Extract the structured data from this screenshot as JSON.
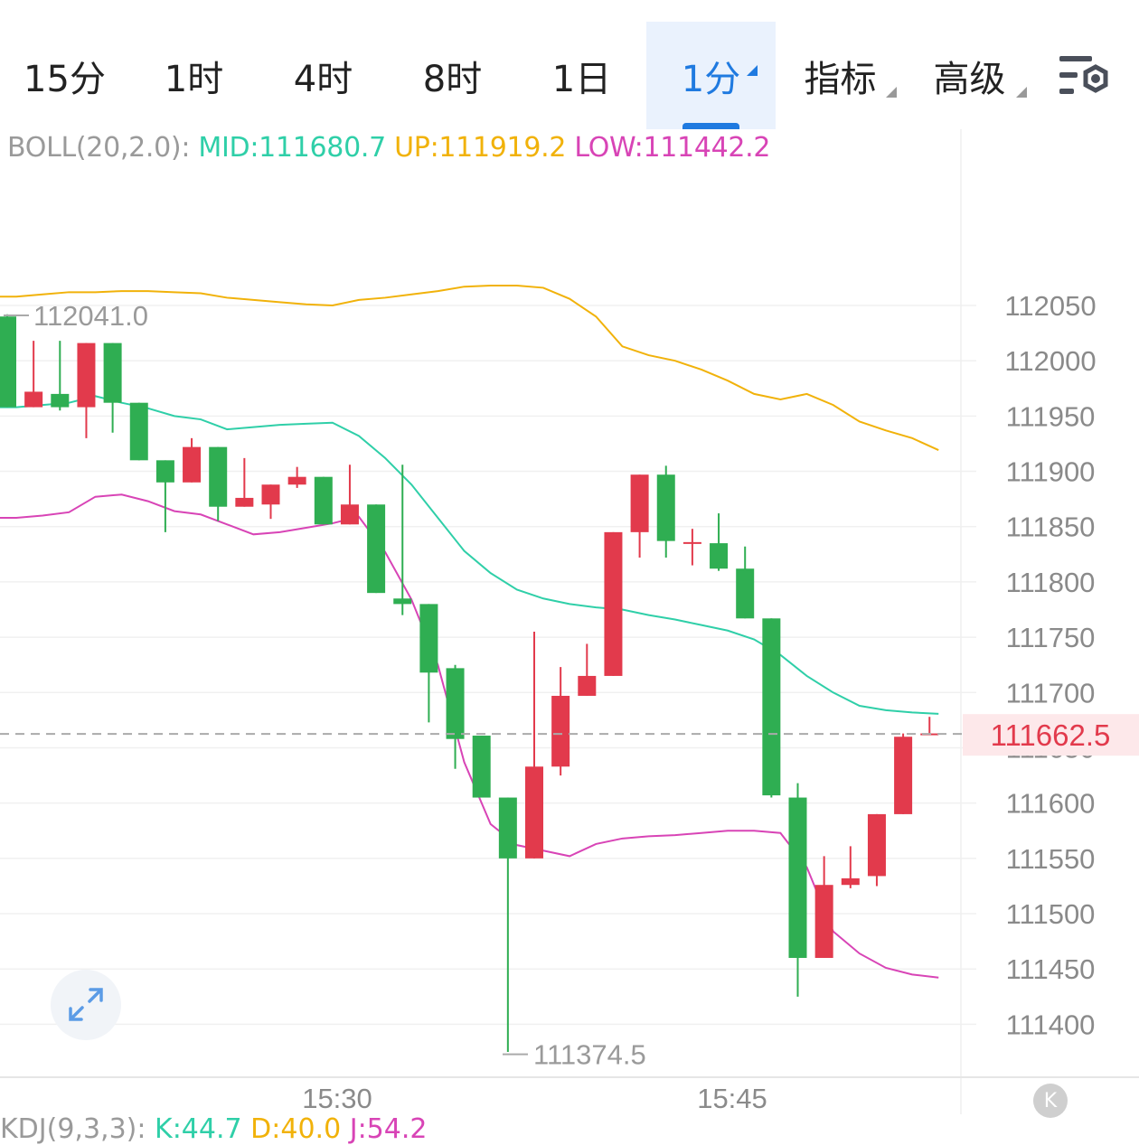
{
  "tabs": [
    {
      "label": "15分",
      "active": false,
      "dropdown": false
    },
    {
      "label": "1时",
      "active": false,
      "dropdown": false
    },
    {
      "label": "4时",
      "active": false,
      "dropdown": false
    },
    {
      "label": "8时",
      "active": false,
      "dropdown": false
    },
    {
      "label": "1日",
      "active": false,
      "dropdown": false
    },
    {
      "label": "1分",
      "active": true,
      "dropdown": true
    },
    {
      "label": "指标",
      "active": false,
      "dropdown": true
    },
    {
      "label": "高级",
      "active": false,
      "dropdown": true
    }
  ],
  "settings_icon": "chart-settings-icon",
  "indicator": {
    "name": "BOLL(20,2.0):",
    "mid": "MID:111680.7",
    "up": "UP:111919.2",
    "low": "LOW:111442.2"
  },
  "kdj": {
    "name": "KDJ(9,3,3):",
    "k": "K:44.7",
    "d": "D:40.0",
    "j": "J:54.2"
  },
  "price_labels": {
    "high": "112041.0",
    "low": "111374.5",
    "current": "111662.5"
  },
  "y_ticks": [
    "112050",
    "112000",
    "111950",
    "111900",
    "111850",
    "111800",
    "111750",
    "111700",
    "111650",
    "111600",
    "111550",
    "111500",
    "111450",
    "111400"
  ],
  "x_ticks": [
    "15:30",
    "15:45"
  ],
  "expand_icon": "expand-icon",
  "k_icon_label": "K",
  "colors": {
    "up": "#e23a4c",
    "down": "#2fae52",
    "mid": "#2fcfa8",
    "upper": "#f1b20a",
    "lower": "#d844b6",
    "accent": "#1f7ae0"
  },
  "chart_data": {
    "type": "candlestick",
    "y_range": [
      111370,
      112140
    ],
    "candles": [
      {
        "o": 112040,
        "c": 111958,
        "h": 112042,
        "l": 111958
      },
      {
        "o": 111958,
        "c": 111972,
        "h": 112018,
        "l": 111958
      },
      {
        "o": 111970,
        "c": 111958,
        "h": 112018,
        "l": 111955
      },
      {
        "o": 111958,
        "c": 112016,
        "h": 112016,
        "l": 111930
      },
      {
        "o": 112016,
        "c": 111962,
        "h": 112016,
        "l": 111935
      },
      {
        "o": 111962,
        "c": 111910,
        "h": 111962,
        "l": 111910
      },
      {
        "o": 111910,
        "c": 111890,
        "h": 111910,
        "l": 111845
      },
      {
        "o": 111890,
        "c": 111922,
        "h": 111930,
        "l": 111890
      },
      {
        "o": 111922,
        "c": 111868,
        "h": 111922,
        "l": 111855
      },
      {
        "o": 111868,
        "c": 111876,
        "h": 111912,
        "l": 111868
      },
      {
        "o": 111870,
        "c": 111888,
        "h": 111888,
        "l": 111857
      },
      {
        "o": 111888,
        "c": 111895,
        "h": 111904,
        "l": 111885
      },
      {
        "o": 111895,
        "c": 111852,
        "h": 111895,
        "l": 111852
      },
      {
        "o": 111852,
        "c": 111870,
        "h": 111906,
        "l": 111852
      },
      {
        "o": 111870,
        "c": 111790,
        "h": 111870,
        "l": 111790
      },
      {
        "o": 111785,
        "c": 111780,
        "h": 111906,
        "l": 111770
      },
      {
        "o": 111780,
        "c": 111718,
        "h": 111780,
        "l": 111673
      },
      {
        "o": 111722,
        "c": 111658,
        "h": 111725,
        "l": 111631
      },
      {
        "o": 111661,
        "c": 111605,
        "h": 111661,
        "l": 111605
      },
      {
        "o": 111605,
        "c": 111550,
        "h": 111605,
        "l": 111375
      },
      {
        "o": 111550,
        "c": 111633,
        "h": 111755,
        "l": 111550
      },
      {
        "o": 111633,
        "c": 111697,
        "h": 111723,
        "l": 111625
      },
      {
        "o": 111697,
        "c": 111715,
        "h": 111744,
        "l": 111697
      },
      {
        "o": 111715,
        "c": 111845,
        "h": 111845,
        "l": 111715
      },
      {
        "o": 111845,
        "c": 111897,
        "h": 111897,
        "l": 111822
      },
      {
        "o": 111897,
        "c": 111837,
        "h": 111905,
        "l": 111822
      },
      {
        "o": 111836,
        "c": 111836,
        "h": 111848,
        "l": 111815
      },
      {
        "o": 111835,
        "c": 111812,
        "h": 111862,
        "l": 111810
      },
      {
        "o": 111812,
        "c": 111767,
        "h": 111832,
        "l": 111767
      },
      {
        "o": 111767,
        "c": 111607,
        "h": 111767,
        "l": 111605
      },
      {
        "o": 111605,
        "c": 111460,
        "h": 111618,
        "l": 111425
      },
      {
        "o": 111460,
        "c": 111526,
        "h": 111552,
        "l": 111460
      },
      {
        "o": 111526,
        "c": 111532,
        "h": 111561,
        "l": 111523
      },
      {
        "o": 111534,
        "c": 111590,
        "h": 111590,
        "l": 111525
      },
      {
        "o": 111590,
        "c": 111660,
        "h": 111663,
        "l": 111590
      },
      {
        "o": 111662,
        "c": 111663,
        "h": 111678,
        "l": 111662
      }
    ],
    "mid": [
      111958,
      111960,
      111962,
      111968,
      111962,
      111957,
      111950,
      111947,
      111938,
      111940,
      111942,
      111943,
      111944,
      111932,
      111912,
      111888,
      111858,
      111828,
      111808,
      111793,
      111785,
      111780,
      111777,
      111775,
      111770,
      111766,
      111761,
      111756,
      111748,
      111734,
      111715,
      111700,
      111688,
      111684,
      111682,
      111680.7
    ],
    "upper": [
      112058,
      112060,
      112062,
      112062,
      112063,
      112063,
      112062,
      112061,
      112057,
      112055,
      112053,
      112051,
      112050,
      112055,
      112057,
      112060,
      112063,
      112067,
      112068,
      112068,
      112066,
      112056,
      112040,
      112013,
      112005,
      112000,
      111992,
      111982,
      111970,
      111965,
      111970,
      111960,
      111945,
      111937,
      111930,
      111919.2
    ],
    "lower": [
      111858,
      111860,
      111863,
      111877,
      111879,
      111873,
      111864,
      111861,
      111852,
      111843,
      111845,
      111849,
      111853,
      111859,
      111827,
      111784,
      111725,
      111637,
      111581,
      111562,
      111557,
      111552,
      111563,
      111568,
      111570,
      111571,
      111573,
      111575,
      111575,
      111573,
      111542,
      111484,
      111464,
      111451,
      111445,
      111442.2
    ]
  }
}
